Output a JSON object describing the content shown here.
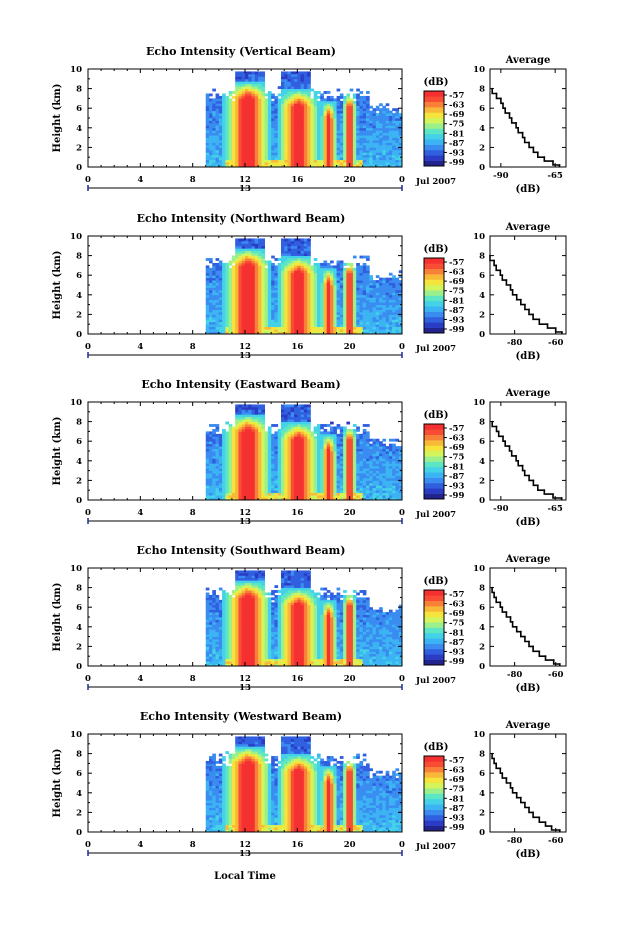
{
  "figure": {
    "xlabel": "Local Time",
    "date_label": "Jul 2007",
    "colorbar_unit": "(dB)",
    "colorbar_ticks": [
      "-57",
      "-63",
      "-69",
      "-75",
      "-81",
      "-87",
      "-93",
      "-99"
    ],
    "colors": [
      "#23238e",
      "#2a3cc4",
      "#3060e0",
      "#3a8cf0",
      "#3cb4f4",
      "#44d2e8",
      "#5ce6c4",
      "#9cf08c",
      "#d4f45c",
      "#f4e43c",
      "#f8b838",
      "#f88038",
      "#f84c34",
      "#f43030"
    ]
  },
  "chart_data": [
    {
      "type": "heatmap",
      "title": "Echo Intensity (Vertical Beam)",
      "ylabel": "Height (km)",
      "x_ticks": [
        "0",
        "4",
        "8",
        "12",
        "16",
        "20",
        "0"
      ],
      "x_range": [
        0,
        24
      ],
      "day_marker": "13",
      "y_ticks": [
        "0",
        "2",
        "4",
        "6",
        "8",
        "10"
      ],
      "ylim": [
        0,
        10
      ],
      "colorbar": {
        "unit": "(dB)",
        "range": [
          -99,
          -57
        ]
      },
      "profile": {
        "title": "Average",
        "xlabel": "(dB)",
        "x_ticks": [
          "-90",
          "-65"
        ],
        "xlim": [
          -95,
          -60
        ],
        "y_ticks": [
          "0",
          "2",
          "4",
          "6",
          "8",
          "10"
        ],
        "height_km": [
          0.2,
          0.6,
          1.0,
          1.5,
          2.0,
          2.5,
          3.0,
          3.5,
          4.0,
          4.5,
          5.0,
          5.5,
          6.0,
          6.5,
          7.0,
          7.5,
          8.0
        ],
        "intensity_db": [
          -63,
          -66,
          -70,
          -73,
          -75,
          -77,
          -79,
          -80,
          -82,
          -83,
          -85,
          -86,
          -88,
          -89,
          -90,
          -92,
          -94
        ]
      }
    },
    {
      "type": "heatmap",
      "title": "Echo Intensity (Northward Beam)",
      "ylabel": "Height (km)",
      "x_ticks": [
        "0",
        "4",
        "8",
        "12",
        "16",
        "20",
        "0"
      ],
      "x_range": [
        0,
        24
      ],
      "day_marker": "13",
      "y_ticks": [
        "0",
        "2",
        "4",
        "6",
        "8",
        "10"
      ],
      "ylim": [
        0,
        10
      ],
      "colorbar": {
        "unit": "(dB)",
        "range": [
          -99,
          -57
        ]
      },
      "profile": {
        "title": "Average",
        "xlabel": "(dB)",
        "x_ticks": [
          "-80",
          "-60"
        ],
        "xlim": [
          -92,
          -55
        ],
        "y_ticks": [
          "0",
          "2",
          "4",
          "6",
          "8",
          "10"
        ],
        "height_km": [
          0.2,
          0.6,
          1.0,
          1.5,
          2.0,
          2.5,
          3.0,
          3.5,
          4.0,
          4.5,
          5.0,
          5.5,
          6.0,
          6.5,
          7.0,
          7.5,
          8.0
        ],
        "intensity_db": [
          -57,
          -60,
          -64,
          -68,
          -71,
          -73,
          -75,
          -77,
          -79,
          -81,
          -82,
          -84,
          -86,
          -87,
          -89,
          -90,
          -92
        ]
      }
    },
    {
      "type": "heatmap",
      "title": "Echo Intensity (Eastward Beam)",
      "ylabel": "Height (km)",
      "x_ticks": [
        "0",
        "4",
        "8",
        "12",
        "16",
        "20",
        "0"
      ],
      "x_range": [
        0,
        24
      ],
      "day_marker": "13",
      "y_ticks": [
        "0",
        "2",
        "4",
        "6",
        "8",
        "10"
      ],
      "ylim": [
        0,
        10
      ],
      "colorbar": {
        "unit": "(dB)",
        "range": [
          -99,
          -57
        ]
      },
      "profile": {
        "title": "Average",
        "xlabel": "(dB)",
        "x_ticks": [
          "-90",
          "-65"
        ],
        "xlim": [
          -95,
          -60
        ],
        "y_ticks": [
          "0",
          "2",
          "4",
          "6",
          "8",
          "10"
        ],
        "height_km": [
          0.2,
          0.6,
          1.0,
          1.5,
          2.0,
          2.5,
          3.0,
          3.5,
          4.0,
          4.5,
          5.0,
          5.5,
          6.0,
          6.5,
          7.0,
          7.5,
          8.0
        ],
        "intensity_db": [
          -62,
          -66,
          -70,
          -73,
          -75,
          -77,
          -79,
          -80,
          -82,
          -83,
          -85,
          -86,
          -88,
          -89,
          -91,
          -92,
          -94
        ]
      }
    },
    {
      "type": "heatmap",
      "title": "Echo Intensity (Southward Beam)",
      "ylabel": "Height (km)",
      "x_ticks": [
        "0",
        "4",
        "8",
        "12",
        "16",
        "20",
        "0"
      ],
      "x_range": [
        0,
        24
      ],
      "day_marker": "13",
      "y_ticks": [
        "0",
        "2",
        "4",
        "6",
        "8",
        "10"
      ],
      "ylim": [
        0,
        10
      ],
      "colorbar": {
        "unit": "(dB)",
        "range": [
          -99,
          -57
        ]
      },
      "profile": {
        "title": "Average",
        "xlabel": "(dB)",
        "x_ticks": [
          "-80",
          "-60"
        ],
        "xlim": [
          -92,
          -55
        ],
        "y_ticks": [
          "0",
          "2",
          "4",
          "6",
          "8",
          "10"
        ],
        "height_km": [
          0.2,
          0.6,
          1.0,
          1.5,
          2.0,
          2.5,
          3.0,
          3.5,
          4.0,
          4.5,
          5.0,
          5.5,
          6.0,
          6.5,
          7.0,
          7.5,
          8.0
        ],
        "intensity_db": [
          -58,
          -61,
          -65,
          -68,
          -71,
          -73,
          -75,
          -77,
          -79,
          -81,
          -82,
          -84,
          -86,
          -87,
          -89,
          -90,
          -91
        ]
      }
    },
    {
      "type": "heatmap",
      "title": "Echo Intensity (Westward Beam)",
      "ylabel": "Height (km)",
      "x_ticks": [
        "0",
        "4",
        "8",
        "12",
        "16",
        "20",
        "0"
      ],
      "x_range": [
        0,
        24
      ],
      "day_marker": "13",
      "y_ticks": [
        "0",
        "2",
        "4",
        "6",
        "8",
        "10"
      ],
      "ylim": [
        0,
        10
      ],
      "colorbar": {
        "unit": "(dB)",
        "range": [
          -99,
          -57
        ]
      },
      "profile": {
        "title": "Average",
        "xlabel": "(dB)",
        "x_ticks": [
          "-80",
          "-60"
        ],
        "xlim": [
          -92,
          -55
        ],
        "y_ticks": [
          "0",
          "2",
          "4",
          "6",
          "8",
          "10"
        ],
        "height_km": [
          0.2,
          0.6,
          1.0,
          1.5,
          2.0,
          2.5,
          3.0,
          3.5,
          4.0,
          4.5,
          5.0,
          5.5,
          6.0,
          6.5,
          7.0,
          7.5,
          8.0
        ],
        "intensity_db": [
          -58,
          -62,
          -65,
          -68,
          -71,
          -73,
          -75,
          -77,
          -79,
          -81,
          -82,
          -84,
          -86,
          -87,
          -89,
          -90,
          -91
        ]
      }
    }
  ]
}
